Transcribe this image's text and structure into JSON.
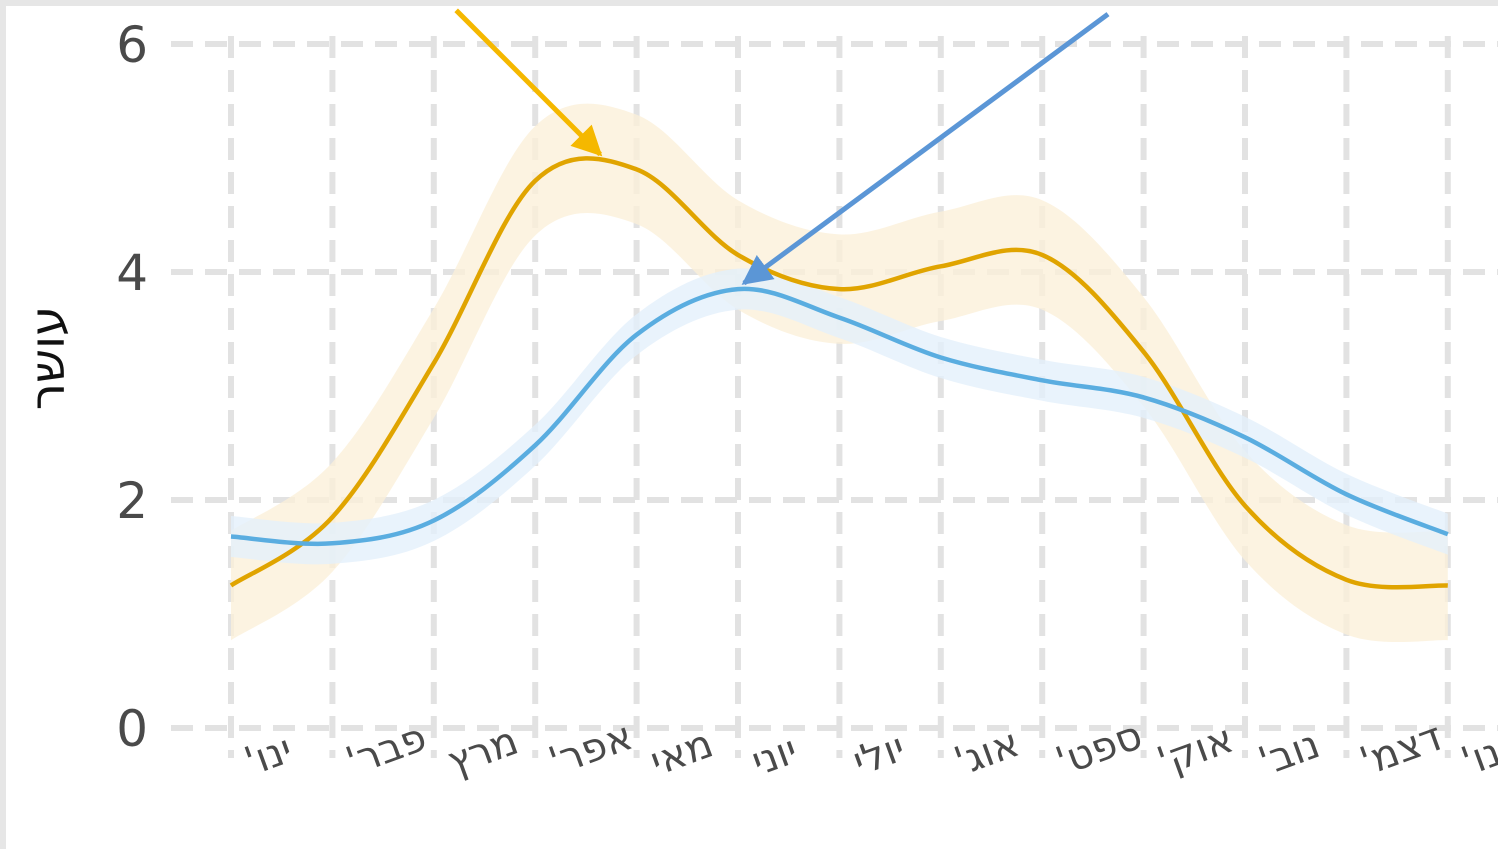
{
  "chart_data": {
    "type": "line",
    "ylabel": "עושר",
    "xlabel": "",
    "title": "",
    "ylim": [
      0,
      6
    ],
    "yticks": [
      "0",
      "2",
      "4",
      "6"
    ],
    "categories": [
      "ינו'",
      "פבר'",
      "מרץ",
      "אפר'",
      "מאי",
      "יוני",
      "יולי",
      "אוג'",
      "ספט'",
      "אוק'",
      "נוב'",
      "דצמ'",
      "ינו'"
    ],
    "grid": true,
    "series": [
      {
        "color": "#e0a400",
        "band_color": "#fbf0d9",
        "values": [
          1.25,
          1.85,
          3.2,
          4.8,
          4.9,
          4.15,
          3.85,
          4.05,
          4.15,
          3.3,
          1.95,
          1.3,
          1.25
        ],
        "band_halfwidth": 0.48
      },
      {
        "color": "#5aade0",
        "band_color": "#e3f0fb",
        "values": [
          1.68,
          1.62,
          1.82,
          2.48,
          3.45,
          3.85,
          3.6,
          3.25,
          3.05,
          2.9,
          2.55,
          2.05,
          1.7
        ],
        "band_halfwidth": 0.18
      }
    ],
    "annotations": [
      {
        "type": "arrow",
        "color": "#f5b800",
        "target_series": 0,
        "target_x": 3.7
      },
      {
        "type": "arrow",
        "color": "#5b96d6",
        "target_series": 1,
        "target_x": 5.0
      }
    ]
  }
}
